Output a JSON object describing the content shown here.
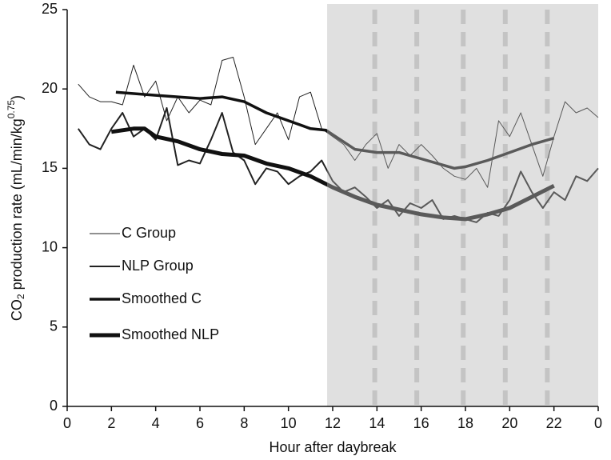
{
  "chart_data": {
    "type": "line",
    "xlabel": "Hour after daybreak",
    "ylabel": [
      "CO",
      "2",
      " production rate (mL/min/kg",
      "0.75",
      ")"
    ],
    "xlim": [
      0,
      24
    ],
    "xticks": [
      0,
      2,
      4,
      6,
      8,
      10,
      12,
      14,
      16,
      18,
      20,
      22,
      {
        "value": 24,
        "label": "0"
      }
    ],
    "ylim": [
      0,
      25
    ],
    "yticks": [
      0,
      5,
      10,
      15,
      20,
      25
    ],
    "shaded_region": [
      11.75,
      24
    ],
    "shade_color": "#e0e0e0",
    "shaded_line_color": "#5a5a5a",
    "event_lines": [
      13.9,
      15.8,
      17.9,
      19.8,
      21.7
    ],
    "event_line_color": "#c4c4c4",
    "legend": "left",
    "series": [
      {
        "name": "C Group",
        "color": "#222222",
        "width": 1,
        "x": [
          0.5,
          1,
          1.5,
          2,
          2.5,
          3,
          3.5,
          4,
          4.5,
          5,
          5.5,
          6,
          6.5,
          7,
          7.5,
          8,
          8.5,
          9,
          9.5,
          10,
          10.5,
          11,
          11.5,
          12,
          12.5,
          13,
          13.5,
          14,
          14.5,
          15,
          15.5,
          16,
          16.5,
          17,
          17.5,
          18,
          18.5,
          19,
          19.5,
          20,
          20.5,
          21,
          21.5,
          22,
          22.5,
          23,
          23.5,
          24
        ],
        "values": [
          20.3,
          19.5,
          19.2,
          19.2,
          19.0,
          21.5,
          19.5,
          20.5,
          18.0,
          19.5,
          18.5,
          19.3,
          19.0,
          21.8,
          22.0,
          19.5,
          16.5,
          17.5,
          18.5,
          16.8,
          19.5,
          19.8,
          17.5,
          17.0,
          16.5,
          15.5,
          16.5,
          17.2,
          15.0,
          16.5,
          15.8,
          16.5,
          15.8,
          15.0,
          14.5,
          14.3,
          15.0,
          13.8,
          18.0,
          17.0,
          18.5,
          16.5,
          14.5,
          17.0,
          19.2,
          18.5,
          18.8,
          18.2
        ]
      },
      {
        "name": "NLP Group",
        "color": "#222222",
        "width": 2,
        "x": [
          0.5,
          1,
          1.5,
          2,
          2.5,
          3,
          3.5,
          4,
          4.5,
          5,
          5.5,
          6,
          6.5,
          7,
          7.5,
          8,
          8.5,
          9,
          9.5,
          10,
          10.5,
          11,
          11.5,
          12,
          12.5,
          13,
          13.5,
          14,
          14.5,
          15,
          15.5,
          16,
          16.5,
          17,
          17.5,
          18,
          18.5,
          19,
          19.5,
          20,
          20.5,
          21,
          21.5,
          22,
          22.5,
          23,
          23.5,
          24
        ],
        "values": [
          17.5,
          16.5,
          16.2,
          17.5,
          18.5,
          17.0,
          17.5,
          16.8,
          18.8,
          15.2,
          15.5,
          15.3,
          16.8,
          18.5,
          16.0,
          15.5,
          14.0,
          15.0,
          14.8,
          14.0,
          14.5,
          14.8,
          15.5,
          14.2,
          13.5,
          13.8,
          13.2,
          12.5,
          13.0,
          12.0,
          12.8,
          12.5,
          13.0,
          11.8,
          12.0,
          11.8,
          11.6,
          12.2,
          12.0,
          13.0,
          14.8,
          13.5,
          12.5,
          13.5,
          13.0,
          14.5,
          14.2,
          15.0
        ]
      },
      {
        "name": "Smoothed C",
        "color": "#111111",
        "width": 3.5,
        "x": [
          2.2,
          4,
          6,
          7,
          8,
          9,
          10,
          11,
          11.7,
          13,
          14,
          15,
          16,
          17,
          17.5,
          18,
          19,
          20,
          21,
          22
        ],
        "values": [
          19.8,
          19.6,
          19.4,
          19.5,
          19.2,
          18.5,
          18.0,
          17.5,
          17.4,
          16.2,
          16.0,
          16.0,
          15.6,
          15.2,
          15.0,
          15.1,
          15.5,
          16.0,
          16.5,
          16.9
        ]
      },
      {
        "name": "Smoothed NLP",
        "color": "#111111",
        "width": 5,
        "x": [
          2,
          3,
          3.5,
          4,
          5,
          6,
          7,
          8,
          9,
          10,
          11,
          12,
          13,
          14,
          15,
          16,
          17,
          18,
          19,
          20,
          21,
          22
        ],
        "values": [
          17.3,
          17.5,
          17.5,
          17.0,
          16.7,
          16.2,
          15.9,
          15.8,
          15.3,
          15.0,
          14.5,
          13.8,
          13.2,
          12.7,
          12.4,
          12.1,
          11.9,
          11.8,
          12.1,
          12.5,
          13.2,
          13.9
        ]
      }
    ]
  }
}
